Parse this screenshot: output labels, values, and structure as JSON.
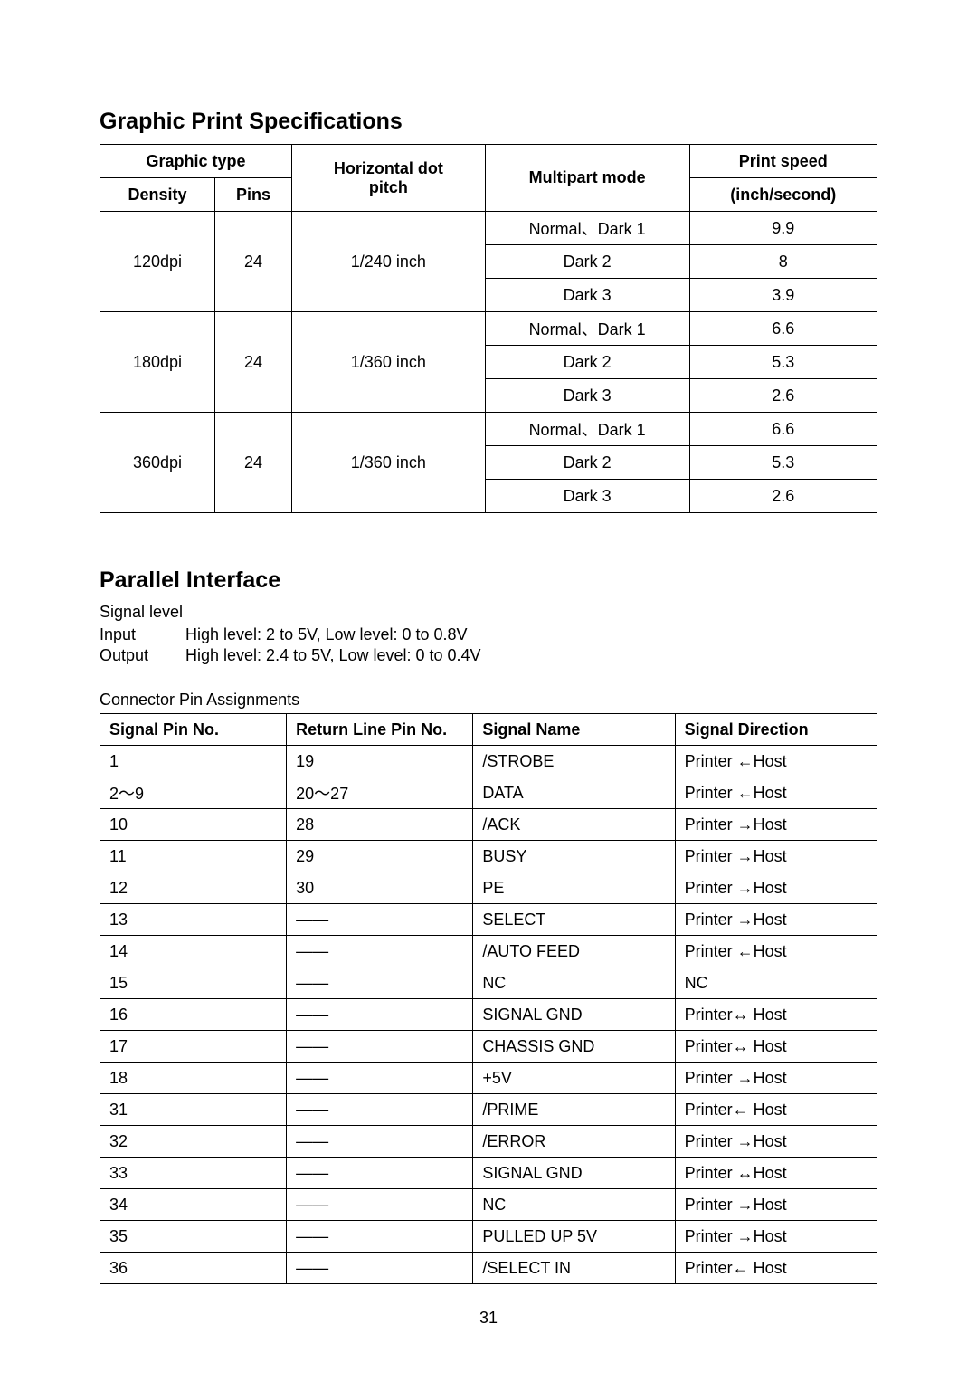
{
  "section1": {
    "title": "Graphic Print Specifications",
    "headers": {
      "graphic_type": "Graphic type",
      "density": "Density",
      "pins": "Pins",
      "horizontal_dot_pitch_l1": "Horizontal dot",
      "horizontal_dot_pitch_l2": "pitch",
      "multipart_mode": "Multipart mode",
      "print_speed_l1": "Print speed",
      "print_speed_l2": "(inch/second)"
    },
    "groups": [
      {
        "density": "120dpi",
        "pins": "24",
        "pitch": "1/240 inch",
        "rows": [
          {
            "mode": "Normal、Dark 1",
            "speed": "9.9"
          },
          {
            "mode": "Dark 2",
            "speed": "8"
          },
          {
            "mode": "Dark 3",
            "speed": "3.9"
          }
        ]
      },
      {
        "density": "180dpi",
        "pins": "24",
        "pitch": "1/360 inch",
        "rows": [
          {
            "mode": "Normal、Dark 1",
            "speed": "6.6"
          },
          {
            "mode": "Dark 2",
            "speed": "5.3"
          },
          {
            "mode": "Dark 3",
            "speed": "2.6"
          }
        ]
      },
      {
        "density": "360dpi",
        "pins": "24",
        "pitch": "1/360 inch",
        "rows": [
          {
            "mode": "Normal、Dark 1",
            "speed": "6.6"
          },
          {
            "mode": "Dark 2",
            "speed": "5.3"
          },
          {
            "mode": "Dark 3",
            "speed": "2.6"
          }
        ]
      }
    ]
  },
  "section2": {
    "title": "Parallel Interface",
    "signal_level_label": "Signal level",
    "input_label": "Input",
    "input_value": "High level: 2 to 5V, Low level: 0 to 0.8V",
    "output_label": "Output",
    "output_value": "High level: 2.4 to 5V, Low level: 0 to 0.4V",
    "connector_label": "Connector Pin Assignments",
    "pin_headers": {
      "signal_pin": "Signal Pin No.",
      "return_pin": "Return Line Pin No.",
      "signal_name": "Signal Name",
      "signal_direction": "Signal Direction"
    },
    "dash": "——",
    "pin_rows": [
      {
        "sig": "1",
        "ret": "19",
        "name": "/STROBE",
        "dir": "Printer  ←Host"
      },
      {
        "sig": "2～9",
        "ret": "20～27",
        "name": "DATA",
        "dir": "Printer  ←Host"
      },
      {
        "sig": "10",
        "ret": "28",
        "name": "/ACK",
        "dir": "Printer  →Host"
      },
      {
        "sig": "11",
        "ret": "29",
        "name": "BUSY",
        "dir": "Printer  →Host"
      },
      {
        "sig": "12",
        "ret": "30",
        "name": "PE",
        "dir": "Printer  →Host"
      },
      {
        "sig": "13",
        "ret": "——",
        "name": "SELECT",
        "dir": "Printer  →Host"
      },
      {
        "sig": "14",
        "ret": "——",
        "name": "/AUTO FEED",
        "dir": "Printer  ←Host"
      },
      {
        "sig": "15",
        "ret": "——",
        "name": "NC",
        "dir": "NC"
      },
      {
        "sig": "16",
        "ret": "——",
        "name": "SIGNAL GND",
        "dir": "Printer↔ Host"
      },
      {
        "sig": "17",
        "ret": "——",
        "name": "CHASSIS GND",
        "dir": "Printer↔ Host"
      },
      {
        "sig": "18",
        "ret": "——",
        "name": "+5V",
        "dir": "Printer  →Host"
      },
      {
        "sig": "31",
        "ret": "——",
        "name": "/PRIME",
        "dir": "Printer←  Host"
      },
      {
        "sig": "32",
        "ret": "——",
        "name": "/ERROR",
        "dir": "Printer  →Host"
      },
      {
        "sig": "33",
        "ret": "——",
        "name": "SIGNAL GND",
        "dir": "Printer ↔Host"
      },
      {
        "sig": "34",
        "ret": "——",
        "name": "NC",
        "dir": "Printer  →Host"
      },
      {
        "sig": "35",
        "ret": "——",
        "name": "PULLED UP 5V",
        "dir": "Printer  →Host"
      },
      {
        "sig": "36",
        "ret": "——",
        "name": "/SELECT IN",
        "dir": "Printer←  Host"
      }
    ]
  },
  "page_number": "31"
}
